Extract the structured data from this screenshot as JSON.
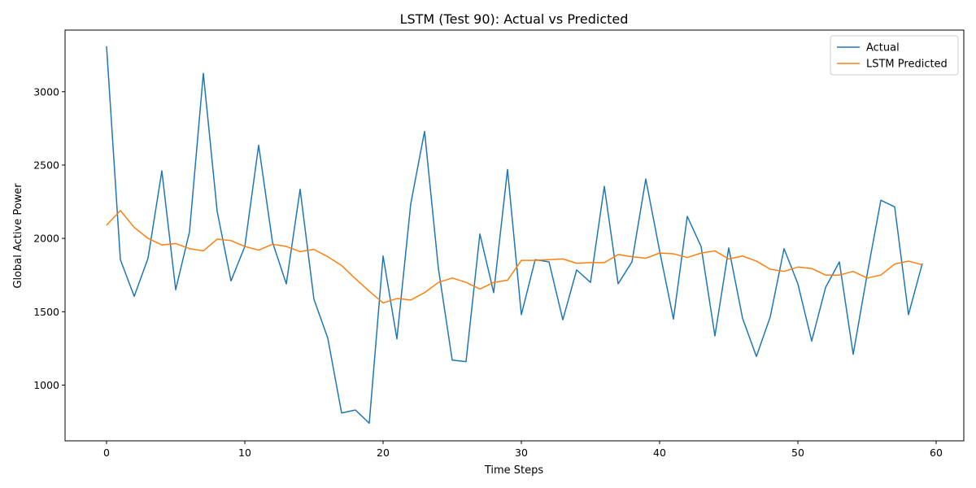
{
  "chart_data": {
    "type": "line",
    "title": "LSTM (Test 90): Actual vs Predicted",
    "xlabel": "Time Steps",
    "ylabel": "Global Active Power",
    "xlim": [
      -3,
      62
    ],
    "ylim": [
      620,
      3420
    ],
    "xticks": [
      0,
      10,
      20,
      30,
      40,
      50,
      60
    ],
    "yticks": [
      1000,
      1500,
      2000,
      2500,
      3000
    ],
    "grid": false,
    "legend_position": "top-right",
    "x": [
      0,
      1,
      2,
      3,
      4,
      5,
      6,
      7,
      8,
      9,
      10,
      11,
      12,
      13,
      14,
      15,
      16,
      17,
      18,
      19,
      20,
      21,
      22,
      23,
      24,
      25,
      26,
      27,
      28,
      29,
      30,
      31,
      32,
      33,
      34,
      35,
      36,
      37,
      38,
      39,
      40,
      41,
      42,
      43,
      44,
      45,
      46,
      47,
      48,
      49,
      50,
      51,
      52,
      53,
      54,
      55,
      56,
      57,
      58,
      59
    ],
    "series": [
      {
        "name": "Actual",
        "color": "#1f77b4",
        "values": [
          3310,
          1855,
          1605,
          1865,
          2460,
          1650,
          2045,
          3125,
          2185,
          1710,
          1945,
          2635,
          1975,
          1690,
          2335,
          1585,
          1320,
          810,
          830,
          740,
          1880,
          1315,
          2235,
          2730,
          1795,
          1170,
          1160,
          2030,
          1630,
          2470,
          1480,
          1855,
          1840,
          1445,
          1785,
          1700,
          2355,
          1690,
          1840,
          2405,
          1915,
          1450,
          2150,
          1945,
          1335,
          1935,
          1455,
          1195,
          1465,
          1930,
          1690,
          1300,
          1665,
          1840,
          1210,
          1750,
          2260,
          2215,
          1480,
          1830
        ]
      },
      {
        "name": "LSTM Predicted",
        "color": "#ff7f0e",
        "values": [
          2090,
          2190,
          2075,
          2000,
          1955,
          1965,
          1930,
          1915,
          1995,
          1985,
          1945,
          1920,
          1960,
          1945,
          1910,
          1925,
          1875,
          1815,
          1725,
          1640,
          1560,
          1590,
          1580,
          1630,
          1700,
          1730,
          1700,
          1655,
          1700,
          1715,
          1850,
          1850,
          1855,
          1860,
          1830,
          1835,
          1835,
          1890,
          1875,
          1865,
          1900,
          1895,
          1870,
          1900,
          1915,
          1860,
          1880,
          1845,
          1790,
          1775,
          1805,
          1795,
          1750,
          1750,
          1775,
          1730,
          1750,
          1825,
          1845,
          1820
        ]
      }
    ]
  }
}
